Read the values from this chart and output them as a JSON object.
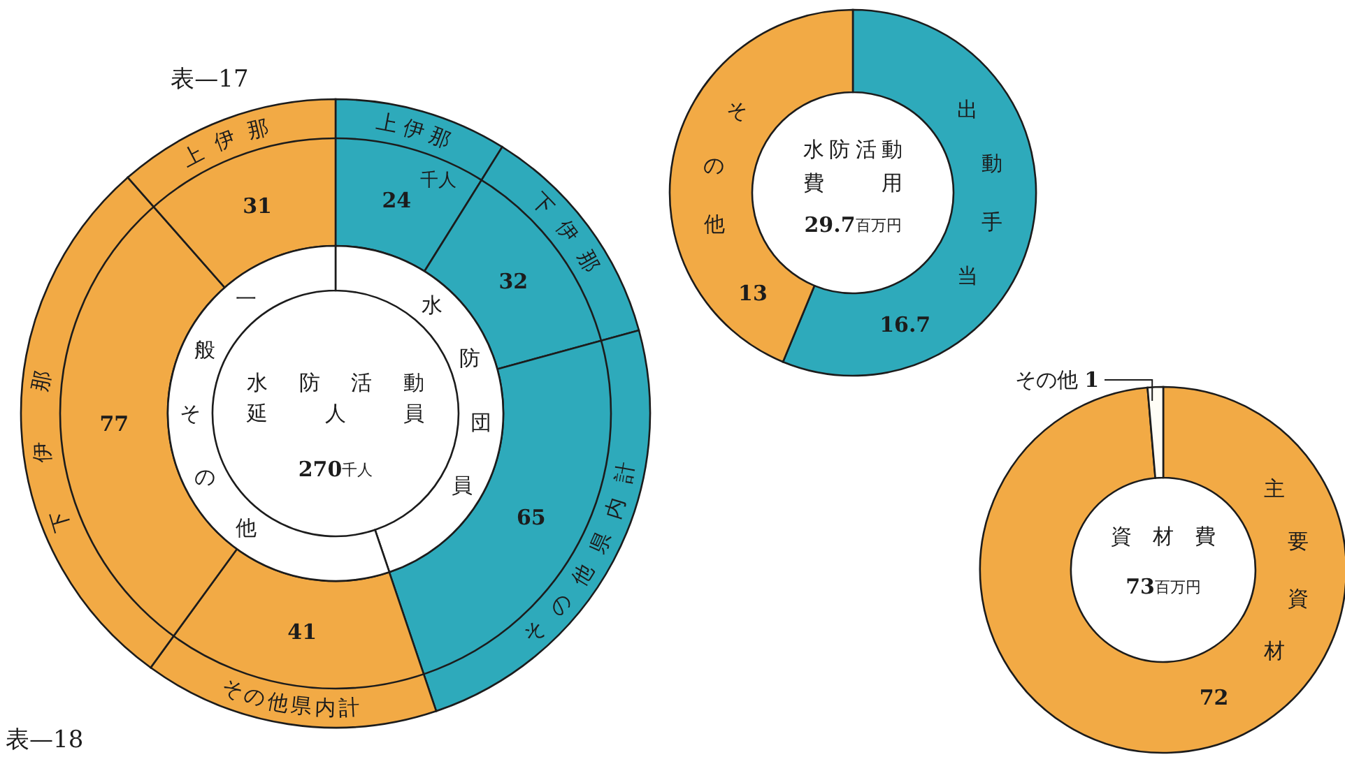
{
  "chart_data": [
    {
      "type": "donut",
      "title": "表—17",
      "categories": [
        "上伊那",
        "下伊那",
        "その他県内計",
        "その他県内計",
        "下伊那",
        "上伊那"
      ],
      "values": [
        24,
        32,
        65,
        41,
        77,
        31
      ],
      "colors": [
        "#2eaabb",
        "#2eaabb",
        "#2eaabb",
        "#f2aa45",
        "#f2aa45",
        "#f2aa45"
      ],
      "data_labels": true,
      "annotations": [
        "千人",
        "表—18"
      ]
    },
    {
      "type": "donut",
      "categories": [
        "水防団員",
        "一般その他"
      ],
      "values": [
        44.8,
        55.2
      ],
      "colors": [
        "#ffffff",
        "#ffffff"
      ],
      "annotations": [
        "水防活動延人員",
        "270千人"
      ]
    },
    {
      "type": "donut",
      "title": "水防活動費用",
      "categories": [
        "出動手当",
        "その他"
      ],
      "values": [
        16.7,
        13
      ],
      "colors": [
        "#2eaabb",
        "#f2aa45"
      ],
      "data_labels": true,
      "annotations": [
        "29.7百万円"
      ]
    },
    {
      "type": "donut",
      "title": "資材費",
      "categories": [
        "主要資材",
        "その他"
      ],
      "values": [
        72,
        1
      ],
      "colors": [
        "#f2aa45",
        "#fffdf6"
      ],
      "data_labels": true,
      "annotations": [
        "73百万円"
      ]
    }
  ]
}
